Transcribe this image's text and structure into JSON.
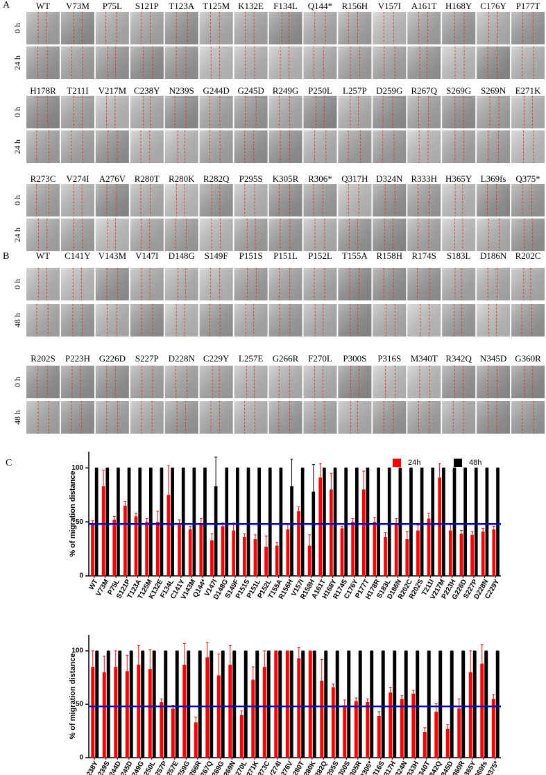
{
  "panels": [
    {
      "label": "A",
      "blocks": [
        {
          "columns": [
            "WT",
            "V73M",
            "P75L",
            "S121P",
            "T123A",
            "T125M",
            "K132E",
            "F134L",
            "Q144*",
            "R156H",
            "V157I",
            "A161T",
            "H168Y",
            "C176Y",
            "P177T"
          ],
          "rows": [
            "0 h",
            "24 h"
          ]
        },
        {
          "columns": [
            "H178R",
            "T211I",
            "V217M",
            "C238Y",
            "N239S",
            "G244D",
            "G245D",
            "R249G",
            "P250L",
            "L257P",
            "D259G",
            "R267Q",
            "S269G",
            "S269N",
            "E271K"
          ],
          "rows": [
            "0 h",
            "24 h"
          ]
        },
        {
          "columns": [
            "R273C",
            "V274I",
            "A276V",
            "R280T",
            "R280K",
            "R282Q",
            "P295S",
            "K305R",
            "R306*",
            "Q317H",
            "D324N",
            "R333H",
            "H365Y",
            "L369fs",
            "Q375*"
          ],
          "rows": [
            "0 h",
            "24 h"
          ]
        }
      ]
    },
    {
      "label": "B",
      "blocks": [
        {
          "columns": [
            "WT",
            "C141Y",
            "V143M",
            "V147I",
            "D148G",
            "S149F",
            "P151S",
            "P151L",
            "P152L",
            "T155A",
            "R158H",
            "R174S",
            "S183L",
            "D186N",
            "R202C"
          ],
          "rows": [
            "0 h",
            "48 h"
          ]
        },
        {
          "columns": [
            "R202S",
            "P223H",
            "G226D",
            "S227P",
            "D228N",
            "C229Y",
            "L257E",
            "G266R",
            "F270L",
            "P300S",
            "P316S",
            "M340T",
            "R342Q",
            "N345D",
            "G360R"
          ],
          "rows": [
            "0 h",
            "48 h"
          ]
        }
      ]
    }
  ],
  "panel_c_label": "C",
  "chart_data": [
    {
      "type": "bar",
      "y_label": "% of migration distance",
      "categories": [
        "WT",
        "V73M",
        "P75L",
        "S121P",
        "T123A",
        "T125M",
        "K132E",
        "F134L",
        "C141Y",
        "V143M",
        "Q144*",
        "V147I",
        "D148G",
        "S149F",
        "P151S",
        "P151L",
        "P152L",
        "T155A",
        "R156H",
        "V157I",
        "R158H",
        "A161T",
        "H168Y",
        "R174S",
        "C176Y",
        "P177T",
        "H178R",
        "S183L",
        "D186N",
        "R202C",
        "R202S",
        "T211I",
        "V217M",
        "P223H",
        "G226D",
        "S227P",
        "D228N",
        "C229Y"
      ],
      "series": [
        {
          "name": "24h",
          "color": "#ff0000",
          "values": [
            48,
            83,
            52,
            65,
            55,
            50,
            50,
            75,
            47,
            43,
            48,
            33,
            46,
            42,
            36,
            34,
            27,
            28,
            43,
            60,
            28,
            91,
            80,
            44,
            50,
            80,
            50,
            36,
            48,
            34,
            42,
            53,
            91,
            42,
            39,
            38,
            41,
            43
          ],
          "errors": [
            3,
            15,
            3,
            4,
            3,
            3,
            10,
            27,
            5,
            3,
            5,
            6,
            3,
            7,
            3,
            4,
            10,
            3,
            5,
            4,
            10,
            13,
            15,
            2,
            3,
            17,
            4,
            4,
            5,
            7,
            5,
            5,
            13,
            6,
            3,
            3,
            3,
            3
          ]
        },
        {
          "name": "48h",
          "color": "#000000",
          "values": [
            100,
            100,
            100,
            100,
            100,
            100,
            100,
            100,
            100,
            100,
            100,
            83,
            100,
            100,
            100,
            100,
            100,
            100,
            83,
            100,
            78,
            100,
            100,
            100,
            100,
            100,
            100,
            100,
            100,
            100,
            100,
            100,
            100,
            100,
            100,
            100,
            100,
            100
          ],
          "errors": [
            0,
            0,
            0,
            0,
            0,
            0,
            0,
            0,
            0,
            0,
            0,
            27,
            0,
            0,
            0,
            0,
            0,
            0,
            25,
            0,
            25,
            0,
            0,
            0,
            0,
            0,
            0,
            0,
            0,
            0,
            0,
            0,
            0,
            0,
            0,
            0,
            0,
            0
          ]
        }
      ],
      "ylim": [
        0,
        115
      ],
      "yticks": [
        0,
        50,
        100
      ],
      "reference_line": {
        "value": 48,
        "color": "#0000cc"
      },
      "legend": "top-right"
    },
    {
      "type": "bar",
      "y_label": "% of migration distance",
      "categories": [
        "C238Y",
        "N239S",
        "G244D",
        "G245D",
        "R249G",
        "P250L",
        "L257P",
        "L257E",
        "D259G",
        "G266R",
        "R267Q",
        "S269G",
        "S269N",
        "F270L",
        "E271K",
        "R273C",
        "V274I",
        "A276V",
        "R280T",
        "R280K",
        "R282Q",
        "P295S",
        "P300S",
        "K305R",
        "R306*",
        "P316S",
        "Q317H",
        "D324N",
        "R333H",
        "M340T",
        "R342Q",
        "N345D",
        "G360R",
        "H365Y",
        "L369fs",
        "Q375*"
      ],
      "series": [
        {
          "color": "#ff0000",
          "values": [
            85,
            80,
            85,
            81,
            87,
            83,
            52,
            46,
            87,
            33,
            94,
            77,
            87,
            40,
            73,
            85,
            100,
            100,
            93,
            100,
            72,
            66,
            49,
            53,
            52,
            39,
            61,
            55,
            60,
            24,
            43,
            27,
            46,
            80,
            88,
            55
          ],
          "errors": [
            15,
            15,
            15,
            15,
            18,
            18,
            3,
            3,
            20,
            5,
            14,
            20,
            18,
            4,
            12,
            15,
            0,
            0,
            10,
            0,
            20,
            3,
            5,
            3,
            3,
            4,
            5,
            3,
            3,
            4,
            8,
            4,
            9,
            20,
            18,
            4
          ]
        },
        {
          "color": "#000000",
          "values": [
            100,
            100,
            100,
            100,
            100,
            100,
            100,
            100,
            100,
            100,
            100,
            100,
            100,
            100,
            100,
            100,
            100,
            100,
            100,
            100,
            100,
            100,
            100,
            100,
            100,
            100,
            100,
            100,
            100,
            100,
            100,
            100,
            100,
            100,
            100,
            100
          ],
          "errors": [
            0,
            0,
            0,
            0,
            0,
            0,
            0,
            0,
            0,
            0,
            0,
            0,
            0,
            0,
            0,
            0,
            0,
            0,
            0,
            0,
            0,
            0,
            0,
            0,
            0,
            0,
            0,
            0,
            0,
            0,
            0,
            0,
            0,
            0,
            0,
            0
          ]
        }
      ],
      "ylim": [
        0,
        115
      ],
      "yticks": [
        0,
        50,
        100
      ],
      "reference_line": {
        "value": 48,
        "color": "#0000cc"
      }
    }
  ]
}
